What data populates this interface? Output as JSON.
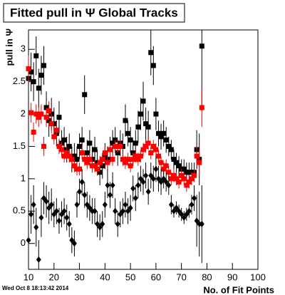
{
  "chart_data": {
    "type": "scatter",
    "title": "Fitted pull in Ψ   Global Tracks",
    "ylabel": "pull in Ψ",
    "xlabel": "No. of Fit Points",
    "timestamp": "Wed Oct  8 18:13:42 2014",
    "x": [
      10,
      11,
      12,
      13,
      14,
      15,
      16,
      17,
      18,
      19,
      20,
      21,
      22,
      23,
      24,
      25,
      26,
      27,
      28,
      29,
      30,
      31,
      32,
      33,
      34,
      35,
      36,
      37,
      38,
      39,
      40,
      41,
      42,
      43,
      44,
      45,
      46,
      47,
      48,
      49,
      50,
      51,
      52,
      53,
      54,
      55,
      56,
      57,
      58,
      59,
      60,
      61,
      62,
      63,
      64,
      65,
      66,
      67,
      68,
      69,
      70,
      71,
      72,
      73,
      74,
      75,
      76,
      77,
      78
    ],
    "series": [
      {
        "marker": "square",
        "color": "#000000",
        "values": [
          2.55,
          2.65,
          2.5,
          2.9,
          2.4,
          2.6,
          2.75,
          2.1,
          1.9,
          2.0,
          1.85,
          1.7,
          1.95,
          1.55,
          1.6,
          1.45,
          1.5,
          1.3,
          1.35,
          1.3,
          1.5,
          1.6,
          2.3,
          1.4,
          1.55,
          1.3,
          1.45,
          1.25,
          1.1,
          1.2,
          1.35,
          1.3,
          1.45,
          1.55,
          1.6,
          1.4,
          1.55,
          1.5,
          1.9,
          1.7,
          1.6,
          1.4,
          1.55,
          1.8,
          2.0,
          2.2,
          1.85,
          1.8,
          2.95,
          2.75,
          2.0,
          1.7,
          1.65,
          1.7,
          1.6,
          1.5,
          1.45,
          1.3,
          1.25,
          1.2,
          1.15,
          1.15,
          1.1,
          1.1,
          1.1,
          1.1,
          1.45,
          1.3,
          3.05
        ],
        "errors": [
          0.3,
          0.3,
          0.3,
          0.3,
          0.3,
          0.3,
          0.3,
          0.25,
          0.25,
          0.25,
          0.25,
          0.2,
          0.25,
          0.2,
          0.2,
          0.2,
          0.2,
          0.2,
          0.2,
          0.2,
          0.2,
          0.2,
          0.3,
          0.2,
          0.2,
          0.2,
          0.2,
          0.2,
          0.2,
          0.2,
          0.2,
          0.2,
          0.2,
          0.2,
          0.2,
          0.2,
          0.2,
          0.2,
          0.25,
          0.2,
          0.2,
          0.2,
          0.2,
          0.25,
          0.25,
          0.3,
          0.25,
          0.25,
          0.35,
          0.3,
          0.25,
          0.2,
          0.2,
          0.2,
          0.2,
          0.15,
          0.15,
          0.15,
          0.15,
          0.15,
          0.15,
          0.15,
          0.15,
          0.15,
          0.15,
          0.15,
          0.3,
          0.4,
          1.0
        ]
      },
      {
        "marker": "square",
        "color": "#ff0000",
        "values": [
          2.7,
          2.02,
          1.72,
          2.0,
          1.95,
          2.0,
          1.5,
          1.95,
          2.05,
          1.85,
          1.65,
          1.75,
          1.5,
          1.45,
          1.35,
          1.4,
          1.35,
          1.3,
          1.2,
          1.15,
          1.15,
          1.4,
          1.3,
          1.25,
          1.3,
          1.2,
          1.2,
          1.15,
          1.25,
          1.3,
          1.4,
          1.25,
          1.45,
          1.3,
          1.5,
          1.5,
          1.5,
          1.3,
          1.25,
          1.3,
          1.2,
          1.3,
          1.35,
          1.3,
          1.35,
          1.45,
          1.5,
          1.55,
          1.4,
          1.5,
          1.45,
          1.35,
          1.25,
          1.15,
          1.2,
          1.1,
          1.0,
          1.05,
          1.0,
          0.95,
          1.05,
          1.0,
          0.9,
          0.95,
          1.0,
          1.05,
          1.35,
          1.25,
          2.1
        ],
        "errors": [
          0.2,
          0.15,
          0.15,
          0.15,
          0.15,
          0.15,
          0.15,
          0.15,
          0.15,
          0.15,
          0.12,
          0.12,
          0.12,
          0.12,
          0.1,
          0.1,
          0.1,
          0.1,
          0.1,
          0.1,
          0.1,
          0.1,
          0.1,
          0.1,
          0.1,
          0.1,
          0.1,
          0.1,
          0.1,
          0.1,
          0.1,
          0.1,
          0.1,
          0.1,
          0.1,
          0.1,
          0.1,
          0.1,
          0.1,
          0.1,
          0.1,
          0.1,
          0.1,
          0.1,
          0.1,
          0.1,
          0.1,
          0.1,
          0.1,
          0.1,
          0.1,
          0.1,
          0.1,
          0.1,
          0.1,
          0.1,
          0.1,
          0.1,
          0.1,
          0.1,
          0.1,
          0.1,
          0.1,
          0.1,
          0.1,
          0.1,
          0.15,
          0.2,
          0.3
        ]
      },
      {
        "marker": "diamond",
        "color": "#000000",
        "values": [
          0.05,
          0.45,
          0.6,
          0.25,
          -0.25,
          0.4,
          0.7,
          0.65,
          0.55,
          0.6,
          0.45,
          0.5,
          0.35,
          0.45,
          0.5,
          0.4,
          0.3,
          0.05,
          0.0,
          0.6,
          0.8,
          0.95,
          0.75,
          0.6,
          0.55,
          0.5,
          0.5,
          0.3,
          0.25,
          0.3,
          0.6,
          0.9,
          0.75,
          0.9,
          0.5,
          0.3,
          0.45,
          0.5,
          0.6,
          0.5,
          0.55,
          0.85,
          0.7,
          0.9,
          1.0,
          0.95,
          1.05,
          0.8,
          1.05,
          1.0,
          1.15,
          1.0,
          0.95,
          1.0,
          0.95,
          0.9,
          0.6,
          0.5,
          0.55,
          0.5,
          0.45,
          0.4,
          0.45,
          0.5,
          0.6,
          0.7,
          0.35,
          0.3,
          0.3
        ],
        "errors": [
          0.3,
          0.3,
          0.3,
          0.3,
          0.3,
          0.3,
          0.25,
          0.25,
          0.25,
          0.25,
          0.2,
          0.2,
          0.2,
          0.2,
          0.2,
          0.2,
          0.2,
          0.2,
          0.2,
          0.2,
          0.2,
          0.2,
          0.2,
          0.2,
          0.2,
          0.2,
          0.2,
          0.2,
          0.2,
          0.2,
          0.2,
          0.2,
          0.2,
          0.2,
          0.2,
          0.2,
          0.2,
          0.2,
          0.2,
          0.2,
          0.2,
          0.2,
          0.2,
          0.2,
          0.2,
          0.2,
          0.2,
          0.2,
          0.2,
          0.2,
          0.2,
          0.2,
          0.2,
          0.15,
          0.15,
          0.15,
          0.15,
          0.1,
          0.1,
          0.1,
          0.1,
          0.1,
          0.1,
          0.1,
          0.15,
          0.2,
          0.4,
          0.5,
          0.6
        ]
      }
    ],
    "xlim": [
      10,
      100
    ],
    "xticks": [
      10,
      20,
      30,
      40,
      50,
      60,
      70,
      80,
      90,
      100
    ],
    "ylim": [
      -0.4,
      3.3
    ],
    "yticks": [
      0,
      0.5,
      1,
      1.5,
      2,
      2.5,
      3
    ]
  }
}
